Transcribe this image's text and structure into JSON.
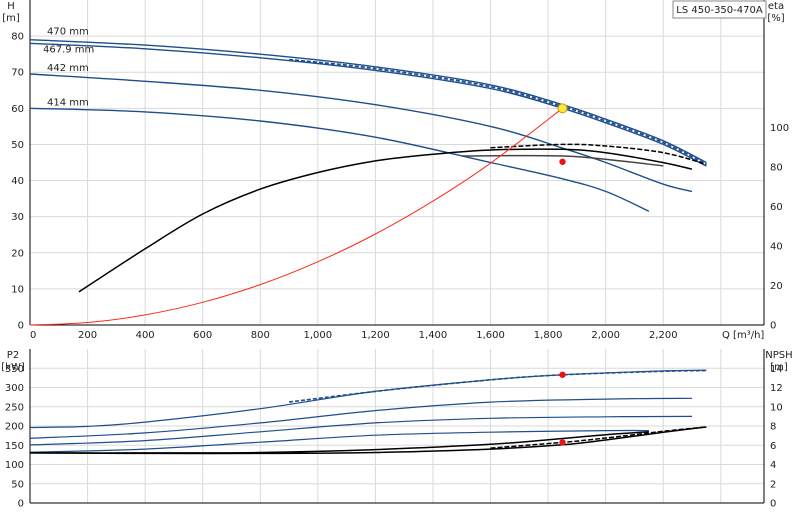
{
  "legend_box": "LS 450-350-470A",
  "chart_data": [
    {
      "type": "line",
      "panel": "head-efficiency",
      "xlabel": "Q [m³/h]",
      "ylabel_left": "H\n[m]",
      "ylabel_right": "eta\n[%]",
      "xlim": [
        0,
        2550
      ],
      "ylim_left": [
        0,
        90
      ],
      "ylim_right": [
        0,
        100
      ],
      "grid": true,
      "x_ticks": [
        "0",
        "200",
        "400",
        "600",
        "800",
        "1,000",
        "1,200",
        "1,400",
        "1,600",
        "1,800",
        "2,000",
        "2,200"
      ],
      "y_ticks_left": [
        0,
        10,
        20,
        30,
        40,
        50,
        60,
        70,
        80
      ],
      "y_ticks_right": [
        0,
        20,
        40,
        60,
        80,
        100
      ],
      "head_curves": [
        {
          "name": "470 mm",
          "color": "#1f4e8c",
          "dashed": false,
          "points": [
            [
              0,
              79
            ],
            [
              400,
              77.5
            ],
            [
              800,
              75
            ],
            [
              1200,
              71.5
            ],
            [
              1600,
              66.5
            ],
            [
              1850,
              61
            ],
            [
              2000,
              57
            ],
            [
              2200,
              51
            ],
            [
              2350,
              45
            ]
          ]
        },
        {
          "name": "467.9 mm",
          "color": "#1f4e8c",
          "dashed": false,
          "points": [
            [
              0,
              78
            ],
            [
              400,
              76.5
            ],
            [
              800,
              74
            ],
            [
              1200,
              70.5
            ],
            [
              1600,
              65.5
            ],
            [
              1850,
              60
            ],
            [
              2000,
              56
            ],
            [
              2200,
              50
            ],
            [
              2350,
              44
            ]
          ]
        },
        {
          "name": "",
          "color": "#1f4e8c",
          "dashed": true,
          "points": [
            [
              900,
              73.5
            ],
            [
              1200,
              71
            ],
            [
              1600,
              66
            ],
            [
              1850,
              60.5
            ],
            [
              2000,
              56.5
            ],
            [
              2200,
              50.5
            ],
            [
              2350,
              44.5
            ]
          ]
        },
        {
          "name": "442 mm",
          "color": "#1f4e8c",
          "dashed": false,
          "points": [
            [
              0,
              69.5
            ],
            [
              400,
              67.5
            ],
            [
              800,
              65
            ],
            [
              1200,
              61
            ],
            [
              1600,
              55
            ],
            [
              1850,
              49
            ],
            [
              2000,
              45
            ],
            [
              2200,
              39
            ],
            [
              2300,
              37
            ]
          ]
        },
        {
          "name": "414 mm",
          "color": "#1f4e8c",
          "dashed": false,
          "points": [
            [
              0,
              60
            ],
            [
              400,
              59
            ],
            [
              800,
              56.5
            ],
            [
              1200,
              52
            ],
            [
              1600,
              45
            ],
            [
              1850,
              40.5
            ],
            [
              2000,
              37
            ],
            [
              2150,
              31.5
            ]
          ]
        }
      ],
      "efficiency_curves": [
        {
          "color": "#000000",
          "dashed": false,
          "points": [
            [
              170,
              10
            ],
            [
              400,
              23
            ],
            [
              600,
              33.5
            ],
            [
              800,
              41
            ],
            [
              1000,
              46
            ],
            [
              1200,
              49.5
            ],
            [
              1400,
              51.5
            ],
            [
              1600,
              52.8
            ],
            [
              1850,
              53
            ],
            [
              2000,
              52
            ],
            [
              2200,
              49
            ],
            [
              2300,
              47
            ]
          ]
        },
        {
          "color": "#000000",
          "dashed": true,
          "points": [
            [
              1600,
              53.5
            ],
            [
              1850,
              54.5
            ],
            [
              2000,
              54
            ],
            [
              2200,
              52
            ],
            [
              2350,
              48.5
            ]
          ]
        },
        {
          "color": "#444444",
          "dashed": false,
          "points": [
            [
              1500,
              51
            ],
            [
              1850,
              51
            ],
            [
              2050,
              49.5
            ],
            [
              2200,
              48
            ]
          ]
        }
      ],
      "system_curve": {
        "color": "#ff2a1a",
        "points": [
          [
            0,
            0
          ],
          [
            200,
            0.7
          ],
          [
            400,
            2.8
          ],
          [
            600,
            6.3
          ],
          [
            800,
            11.2
          ],
          [
            1000,
            17.5
          ],
          [
            1200,
            25.2
          ],
          [
            1400,
            34.3
          ],
          [
            1600,
            44.8
          ],
          [
            1850,
            60
          ]
        ]
      },
      "markers": [
        {
          "label": "duty point",
          "x": 1850,
          "y": 60,
          "color": "#ffe640"
        },
        {
          "label": "efficiency at duty",
          "x": 1850,
          "y": 45.2,
          "color": "#ee1111"
        }
      ]
    },
    {
      "type": "line",
      "panel": "power-npsh",
      "ylabel_left": "P2\n[kW]",
      "ylabel_right": "NPSH\n[m]",
      "ylim_left": [
        0,
        400
      ],
      "ylim_right": [
        0,
        16
      ],
      "grid": true,
      "y_ticks_left": [
        0,
        50,
        100,
        150,
        200,
        250,
        300,
        350
      ],
      "y_ticks_right": [
        0,
        2,
        4,
        6,
        8,
        10,
        12,
        14
      ],
      "power_curves": [
        {
          "color": "#1f4e8c",
          "dashed": false,
          "points": [
            [
              0,
              196
            ],
            [
              200,
              199
            ],
            [
              400,
              210
            ],
            [
              800,
              245
            ],
            [
              1200,
              290
            ],
            [
              1600,
              320
            ],
            [
              1850,
              333
            ],
            [
              2200,
              343
            ],
            [
              2350,
              345
            ]
          ]
        },
        {
          "color": "#1f4e8c",
          "dashed": true,
          "points": [
            [
              900,
              262
            ],
            [
              1200,
              290
            ],
            [
              1600,
              320
            ],
            [
              1850,
              333
            ],
            [
              2200,
              342
            ],
            [
              2350,
              344
            ]
          ]
        },
        {
          "color": "#1f4e8c",
          "dashed": false,
          "points": [
            [
              0,
              168
            ],
            [
              400,
              182
            ],
            [
              800,
              208
            ],
            [
              1200,
              240
            ],
            [
              1600,
              262
            ],
            [
              2000,
              270
            ],
            [
              2300,
              272
            ]
          ]
        },
        {
          "color": "#1f4e8c",
          "dashed": false,
          "points": [
            [
              0,
              151
            ],
            [
              400,
              162
            ],
            [
              800,
              185
            ],
            [
              1200,
              208
            ],
            [
              1600,
              220
            ],
            [
              2000,
              224
            ],
            [
              2300,
              225
            ]
          ]
        },
        {
          "color": "#1f4e8c",
          "dashed": false,
          "points": [
            [
              0,
              132
            ],
            [
              400,
              140
            ],
            [
              800,
              158
            ],
            [
              1200,
              176
            ],
            [
              1600,
              184
            ],
            [
              2000,
              188
            ],
            [
              2150,
              188
            ]
          ]
        }
      ],
      "npsh_curves": [
        {
          "color": "#000000",
          "dashed": false,
          "points": [
            [
              0,
              5.2
            ],
            [
              400,
              5.15
            ],
            [
              800,
              5.15
            ],
            [
              1200,
              5.25
            ],
            [
              1600,
              5.6
            ],
            [
              1850,
              6.05
            ],
            [
              2000,
              6.55
            ],
            [
              2200,
              7.35
            ],
            [
              2350,
              7.9
            ]
          ]
        },
        {
          "color": "#000000",
          "dashed": true,
          "points": [
            [
              1600,
              5.7
            ],
            [
              1850,
              6.3
            ],
            [
              2000,
              6.75
            ],
            [
              2200,
              7.45
            ],
            [
              2350,
              7.9
            ]
          ]
        },
        {
          "color": "#000000",
          "dashed": false,
          "points": [
            [
              0,
              5.2
            ],
            [
              400,
              5.2
            ],
            [
              800,
              5.25
            ],
            [
              1200,
              5.55
            ],
            [
              1600,
              6.1
            ],
            [
              1850,
              6.7
            ],
            [
              2000,
              7.1
            ],
            [
              2150,
              7.4
            ]
          ]
        }
      ],
      "markers": [
        {
          "label": "power at duty",
          "x": 1850,
          "y": 333,
          "axis": "left",
          "color": "#ee1111"
        },
        {
          "label": "NPSH at duty",
          "x": 1850,
          "y": 6.3,
          "axis": "right",
          "color": "#ee1111"
        }
      ]
    }
  ]
}
